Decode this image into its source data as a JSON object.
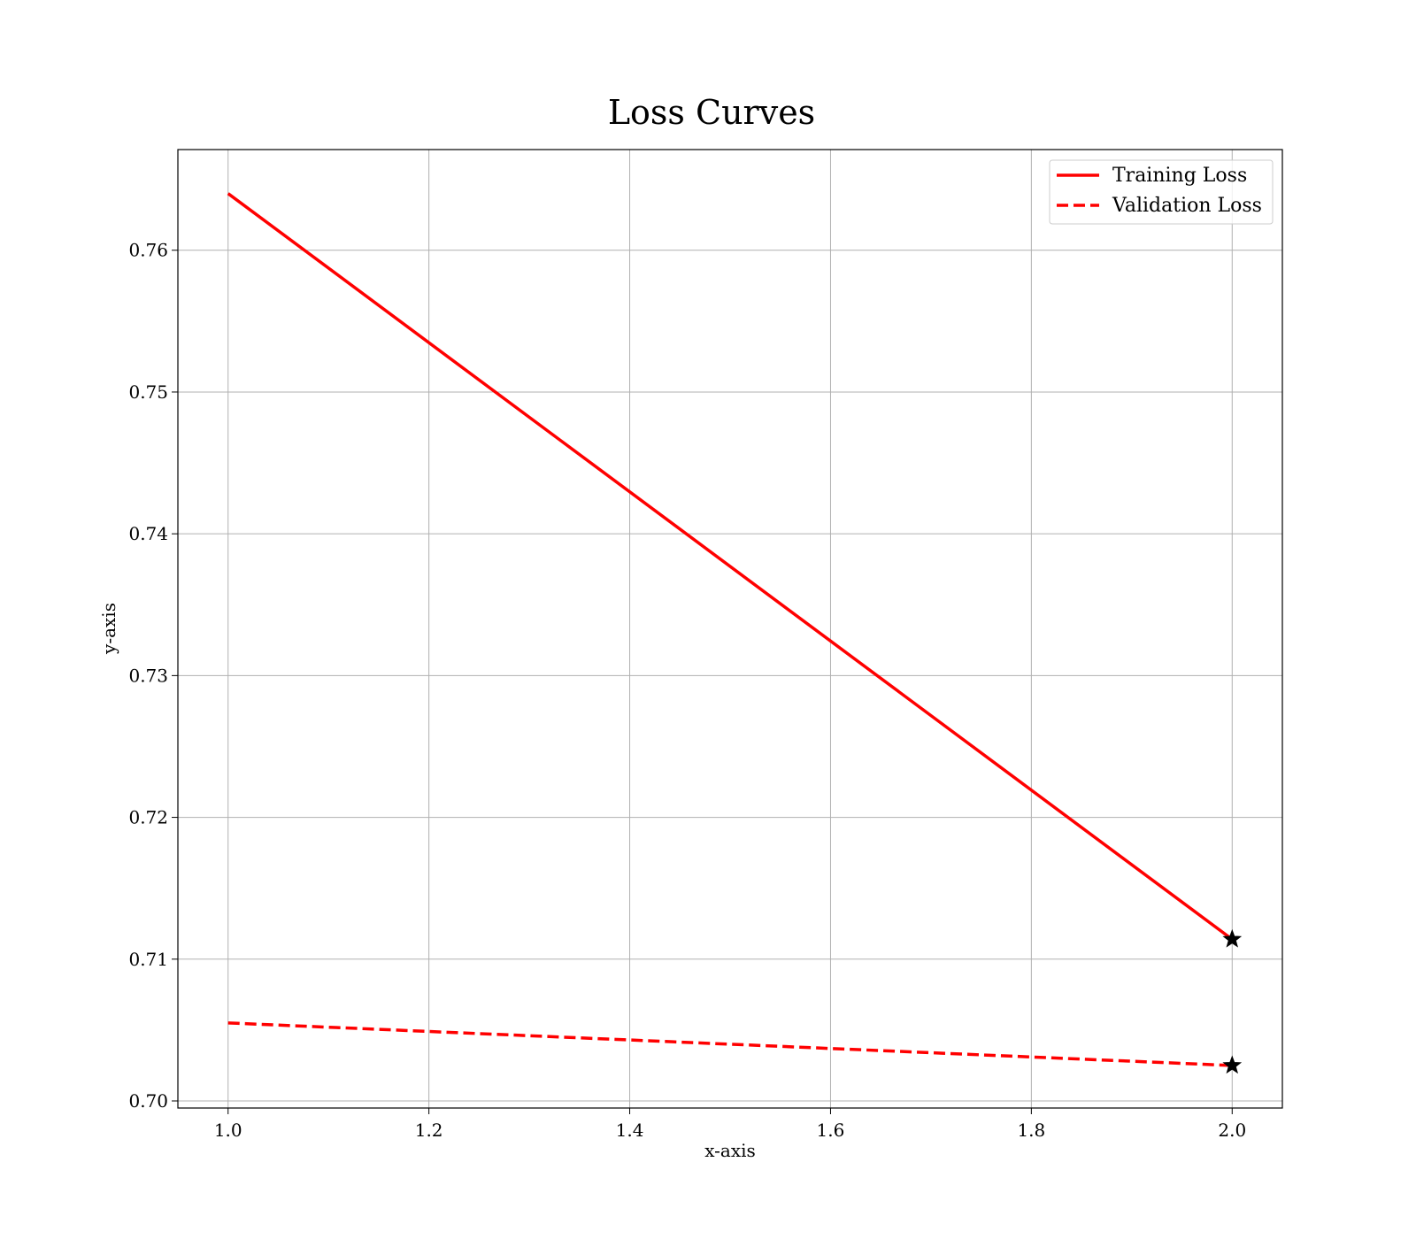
{
  "chart_data": {
    "type": "line",
    "title": "Loss Curves",
    "xlabel": "x-axis",
    "ylabel": "y-axis",
    "xlim": [
      0.95,
      2.05
    ],
    "ylim": [
      0.6995,
      0.7671
    ],
    "xticks": [
      1.0,
      1.2,
      1.4,
      1.6,
      1.8,
      2.0
    ],
    "xtick_labels": [
      "1.0",
      "1.2",
      "1.4",
      "1.6",
      "1.8",
      "2.0"
    ],
    "yticks": [
      0.7,
      0.71,
      0.72,
      0.73,
      0.74,
      0.75,
      0.76
    ],
    "ytick_labels": [
      "0.70",
      "0.71",
      "0.72",
      "0.73",
      "0.74",
      "0.75",
      "0.76"
    ],
    "grid": true,
    "legend_position": "top-right",
    "series": [
      {
        "name": "Training Loss",
        "x": [
          1,
          2
        ],
        "y": [
          0.764,
          0.7114
        ],
        "color": "#ff0000",
        "style": "solid",
        "marker_last": "star"
      },
      {
        "name": "Validation Loss",
        "x": [
          1,
          2
        ],
        "y": [
          0.7055,
          0.7025
        ],
        "color": "#ff0000",
        "style": "dashed",
        "marker_last": "star"
      }
    ]
  }
}
